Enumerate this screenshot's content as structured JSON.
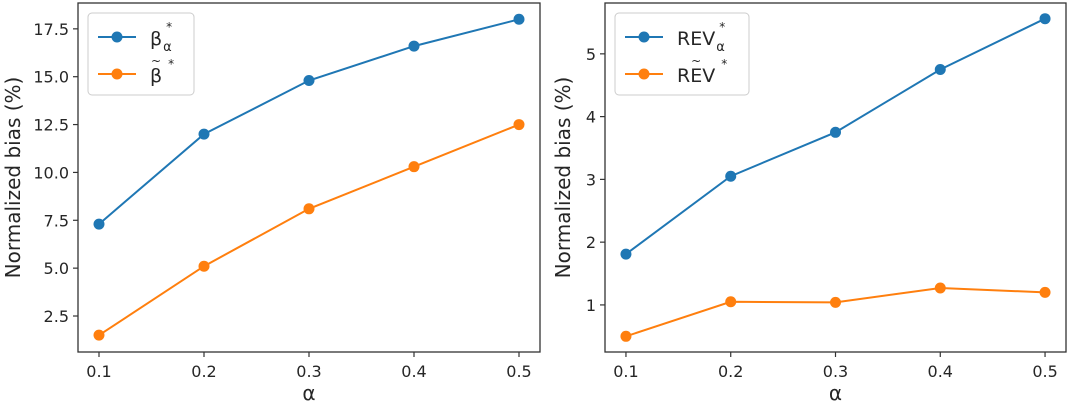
{
  "colors": {
    "series1": "#1f77b4",
    "series2": "#ff7f0e",
    "axis": "#333333",
    "legend_border": "#cccccc"
  },
  "chart_data": [
    {
      "type": "line",
      "title": "",
      "xlabel": "α",
      "ylabel": "Normalized bias (%)",
      "x": [
        0.1,
        0.2,
        0.3,
        0.4,
        0.5
      ],
      "xticks": [
        "0.1",
        "0.2",
        "0.3",
        "0.4",
        "0.5"
      ],
      "yticks": [
        "2.5",
        "5.0",
        "7.5",
        "10.0",
        "12.5",
        "15.0",
        "17.5"
      ],
      "ytick_values": [
        2.5,
        5.0,
        7.5,
        10.0,
        12.5,
        15.0,
        17.5
      ],
      "xlim": [
        0.08,
        0.52
      ],
      "ylim": [
        0.62,
        18.85
      ],
      "grid": false,
      "legend_position": "top-left",
      "series": [
        {
          "name": "β_α*",
          "legend_base": "β",
          "legend_sub": "α",
          "legend_sup": "*",
          "legend_tilde": false,
          "values": [
            7.3,
            12.0,
            14.8,
            16.6,
            18.0
          ]
        },
        {
          "name": "β̃*",
          "legend_base": "β",
          "legend_sub": "",
          "legend_sup": "*",
          "legend_tilde": true,
          "values": [
            1.5,
            5.1,
            8.1,
            10.3,
            12.5
          ]
        }
      ]
    },
    {
      "type": "line",
      "title": "",
      "xlabel": "α",
      "ylabel": "Normalized bias (%)",
      "x": [
        0.1,
        0.2,
        0.3,
        0.4,
        0.5
      ],
      "xticks": [
        "0.1",
        "0.2",
        "0.3",
        "0.4",
        "0.5"
      ],
      "yticks": [
        "1",
        "2",
        "3",
        "4",
        "5"
      ],
      "ytick_values": [
        1,
        2,
        3,
        4,
        5
      ],
      "xlim": [
        0.08,
        0.52
      ],
      "ylim": [
        0.25,
        5.81
      ],
      "grid": false,
      "legend_position": "top-left",
      "series": [
        {
          "name": "REV_α*",
          "legend_base": "REV",
          "legend_sub": "α",
          "legend_sup": "*",
          "legend_tilde": false,
          "values": [
            1.81,
            3.05,
            3.75,
            4.75,
            5.56
          ]
        },
        {
          "name": "RẼV*",
          "legend_base": "REV",
          "legend_sub": "",
          "legend_sup": "*",
          "legend_tilde": true,
          "values": [
            0.5,
            1.05,
            1.04,
            1.27,
            1.2
          ]
        }
      ]
    }
  ]
}
